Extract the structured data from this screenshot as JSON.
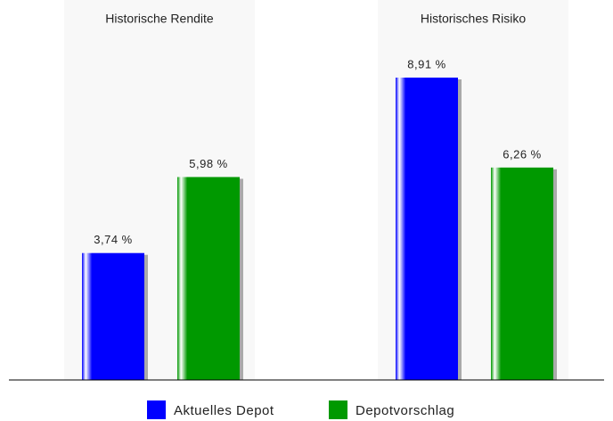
{
  "chart_data": {
    "type": "bar",
    "categories": [
      "Historische Rendite",
      "Historisches Risiko"
    ],
    "series": [
      {
        "name": "Aktuelles Depot",
        "color": "#0000ff",
        "values": [
          3.74,
          8.91
        ],
        "value_labels": [
          "3,74 %",
          "8,91 %"
        ]
      },
      {
        "name": "Depotvorschlag",
        "color": "#009900",
        "values": [
          5.98,
          6.26
        ],
        "value_labels": [
          "5,98 %",
          "6,26 %"
        ]
      }
    ],
    "legend": "bottom"
  }
}
